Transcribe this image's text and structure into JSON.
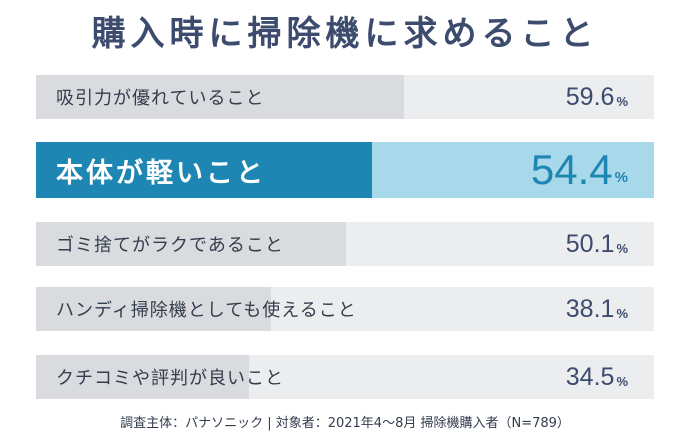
{
  "chart_data": {
    "type": "bar",
    "title": "購入時に掃除機に求めること",
    "categories": [
      "吸引力が優れていること",
      "本体が軽いこと",
      "ゴミ捨てがラクであること",
      "ハンディ掃除機としても使えること",
      "クチコミや評判が良いこと"
    ],
    "values": [
      59.6,
      54.4,
      50.1,
      38.1,
      34.5
    ],
    "value_unit": "%",
    "highlighted_category": "本体が軽いこと",
    "xlim": [
      0,
      100
    ],
    "grid": false,
    "legend": "none",
    "colors": {
      "title": "#3d4c6e",
      "bar_fill": "#dadbde",
      "bar_track": "#ecedef",
      "highlight_fill": "#1e86b3",
      "highlight_track": "#a7d9ea"
    },
    "source": "調査主体：パナソニック | 対象者：2021年4～8月 掃除機購入者（N=789）"
  }
}
